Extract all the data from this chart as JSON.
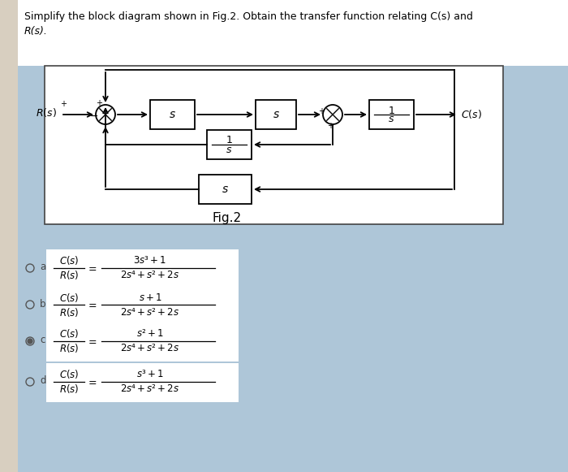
{
  "bg_color": "#aec6d8",
  "sidebar_color": "#c8d8e4",
  "white": "#ffffff",
  "diagram_border": "#888888",
  "text_color": "#111111",
  "title_line1": "Simplify the block diagram shown in Fig.2. Obtain the transfer function relating C(s) and",
  "title_line2": "R(s).",
  "fig_label": "Fig.2",
  "options": [
    {
      "label": "a",
      "num": "3s³+1",
      "den": "2s⁴+s²+2s",
      "selected": false
    },
    {
      "label": "b",
      "num": "s+1",
      "den": "2s⁴+s²+2s",
      "selected": false
    },
    {
      "label": "c",
      "num": "s²+1",
      "den": "2s⁴+s²+2s",
      "selected": true
    },
    {
      "label": "d",
      "num": "s³+1",
      "den": "2s⁴+s²+2s",
      "selected": false
    }
  ]
}
